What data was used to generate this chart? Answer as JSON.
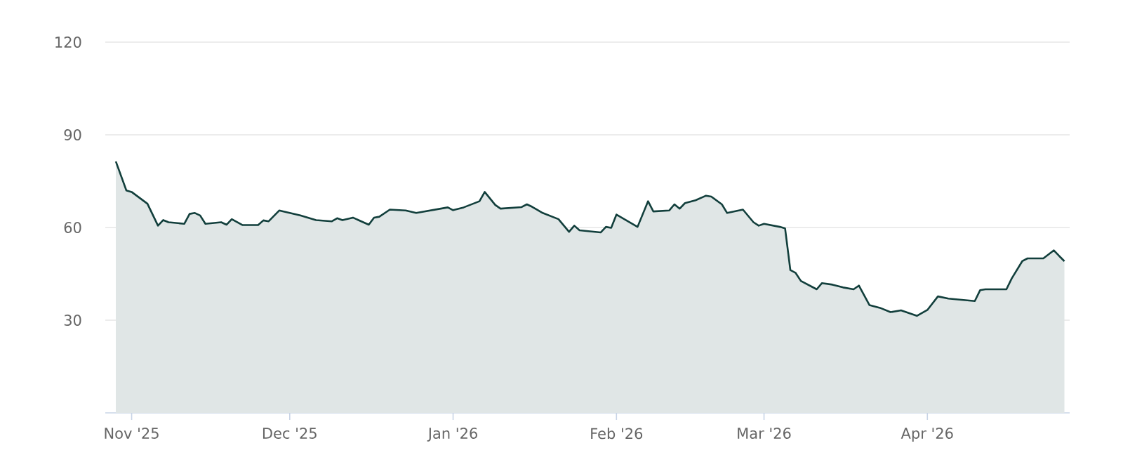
{
  "chart_data": {
    "type": "area",
    "color": "#123f3c",
    "grid": "y",
    "xlim": [
      "2025-10-27",
      "2026-04-28"
    ],
    "ylim": [
      0,
      120
    ],
    "xticks": [
      {
        "value": "2025-11-01",
        "label": "Nov '25"
      },
      {
        "value": "2025-12-01",
        "label": "Dec '25"
      },
      {
        "value": "2026-01-01",
        "label": "Jan '26"
      },
      {
        "value": "2026-02-01",
        "label": "Feb '26"
      },
      {
        "value": "2026-03-01",
        "label": "Mar '26"
      },
      {
        "value": "2026-04-01",
        "label": "Apr '26"
      }
    ],
    "yticks": [
      30,
      60,
      90,
      120
    ],
    "x": [
      "2025-10-29",
      "2025-10-31",
      "2025-11-01",
      "2025-11-04",
      "2025-11-06",
      "2025-11-07",
      "2025-11-08",
      "2025-11-11",
      "2025-11-12",
      "2025-11-13",
      "2025-11-14",
      "2025-11-15",
      "2025-11-18",
      "2025-11-19",
      "2025-11-20",
      "2025-11-22",
      "2025-11-25",
      "2025-11-26",
      "2025-11-27",
      "2025-11-29",
      "2025-12-03",
      "2025-12-05",
      "2025-12-06",
      "2025-12-09",
      "2025-12-10",
      "2025-12-11",
      "2025-12-13",
      "2025-12-16",
      "2025-12-17",
      "2025-12-18",
      "2025-12-20",
      "2025-12-23",
      "2025-12-25",
      "2025-12-31",
      "2026-01-01",
      "2026-01-03",
      "2026-01-06",
      "2026-01-07",
      "2026-01-09",
      "2026-01-10",
      "2026-01-14",
      "2026-01-15",
      "2026-01-16",
      "2026-01-18",
      "2026-01-21",
      "2026-01-23",
      "2026-01-24",
      "2026-01-25",
      "2026-01-29",
      "2026-01-30",
      "2026-01-31",
      "2026-02-01",
      "2026-02-05",
      "2026-02-07",
      "2026-02-08",
      "2026-02-11",
      "2026-02-12",
      "2026-02-13",
      "2026-02-14",
      "2026-02-16",
      "2026-02-18",
      "2026-02-19",
      "2026-02-21",
      "2026-02-22",
      "2026-02-25",
      "2026-02-27",
      "2026-02-28",
      "2026-03-01",
      "2026-03-04",
      "2026-03-05",
      "2026-03-06",
      "2026-03-07",
      "2026-03-08",
      "2026-03-11",
      "2026-03-12",
      "2026-03-14",
      "2026-03-16",
      "2026-03-18",
      "2026-03-19",
      "2026-03-21",
      "2026-03-23",
      "2026-03-25",
      "2026-03-27",
      "2026-03-30",
      "2026-04-01",
      "2026-04-03",
      "2026-04-05",
      "2026-04-10",
      "2026-04-11",
      "2026-04-12",
      "2026-04-16",
      "2026-04-17",
      "2026-04-19",
      "2026-04-20",
      "2026-04-23",
      "2026-04-25",
      "2026-04-26",
      "2026-04-27"
    ],
    "values": [
      81.4,
      72.0,
      71.5,
      67.7,
      60.6,
      62.4,
      61.7,
      61.2,
      64.4,
      64.7,
      63.9,
      61.2,
      61.7,
      60.9,
      62.7,
      60.8,
      60.8,
      62.3,
      62.0,
      65.5,
      63.9,
      62.9,
      62.4,
      62.0,
      63.0,
      62.4,
      63.2,
      60.9,
      63.2,
      63.5,
      65.8,
      65.5,
      64.7,
      66.5,
      65.6,
      66.5,
      68.5,
      71.5,
      67.3,
      66.1,
      66.6,
      67.5,
      66.7,
      64.7,
      62.7,
      58.6,
      60.6,
      59.1,
      58.4,
      60.2,
      59.9,
      64.2,
      60.2,
      68.5,
      65.2,
      65.5,
      67.5,
      66.1,
      67.9,
      68.8,
      70.3,
      70.0,
      67.5,
      64.7,
      65.8,
      61.7,
      60.6,
      61.2,
      60.2,
      59.7,
      46.2,
      45.3,
      42.7,
      40.0,
      42.0,
      41.5,
      40.6,
      40.0,
      41.2,
      34.9,
      34.0,
      32.6,
      33.2,
      31.4,
      33.3,
      37.7,
      37.0,
      36.2,
      39.7,
      40.0,
      40.0,
      43.5,
      49.1,
      50.0,
      50.0,
      52.6,
      50.8,
      49.1
    ]
  }
}
